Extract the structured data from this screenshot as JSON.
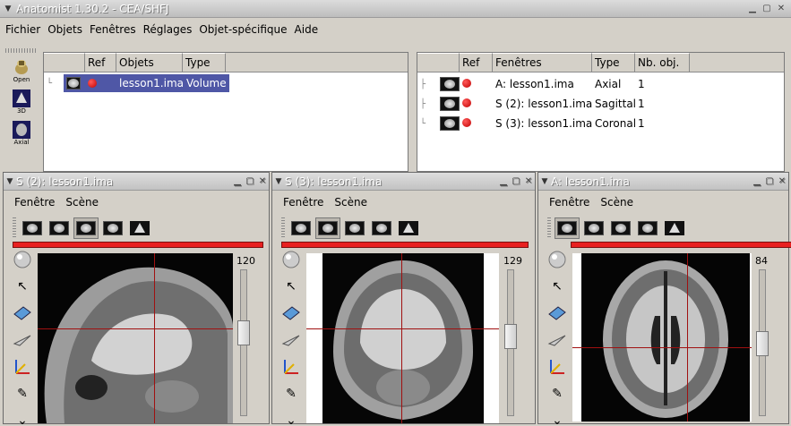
{
  "app": {
    "title": "Anatomist 1.30.2 - CEA/SHFJ"
  },
  "menu": [
    "Fichier",
    "Objets",
    "Fenêtres",
    "Réglages",
    "Objet-spécifique",
    "Aide"
  ],
  "tools": [
    {
      "label": "Open",
      "icon": "open-icon"
    },
    {
      "label": "3D",
      "icon": "view-3d-icon"
    },
    {
      "label": "Axial",
      "icon": "axial-icon"
    }
  ],
  "objects_panel": {
    "headers": [
      "Ref",
      "Objets",
      "Type"
    ],
    "rows": [
      {
        "name": "lesson1.ima",
        "type": "Volume"
      }
    ]
  },
  "windows_panel": {
    "headers": [
      "Ref",
      "Fenêtres",
      "Type",
      "Nb. obj."
    ],
    "rows": [
      {
        "name": "A: lesson1.ima",
        "type": "Axial",
        "count": "1"
      },
      {
        "name": "S (2): lesson1.ima",
        "type": "Sagittal",
        "count": "1"
      },
      {
        "name": "S (3): lesson1.ima",
        "type": "Coronal",
        "count": "1"
      }
    ]
  },
  "subwindows": [
    {
      "title": "S (2): lesson1.ima",
      "menu": [
        "Fenêtre",
        "Scène"
      ],
      "slice": "120",
      "slider": 0.42
    },
    {
      "title": "S (3): lesson1.ima",
      "menu": [
        "Fenêtre",
        "Scène"
      ],
      "slice": "129",
      "slider": 0.45
    },
    {
      "title": "A: lesson1.ima",
      "menu": [
        "Fenêtre",
        "Scène"
      ],
      "slice": "84",
      "slider": 0.51
    }
  ],
  "colors": {
    "accent": "#4f57a6",
    "red": "#e82020"
  }
}
